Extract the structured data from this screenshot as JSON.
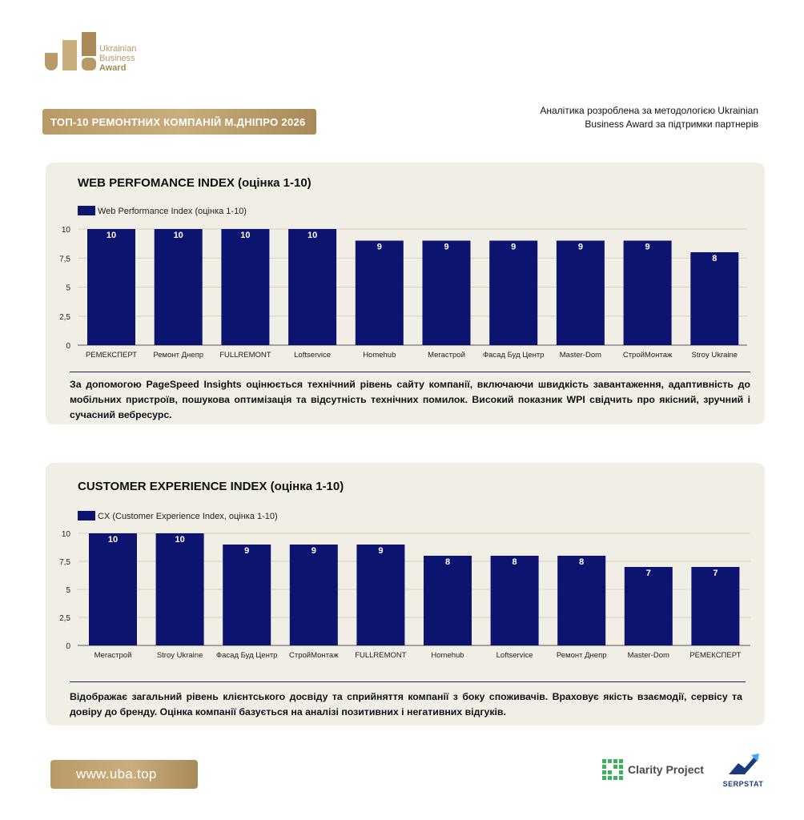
{
  "brand": {
    "logo_lines": [
      "Ukrainian",
      "Business",
      "Award"
    ],
    "colors": {
      "gold": "#b89a66",
      "navy": "#0d1470",
      "panel": "#f1eee6"
    }
  },
  "header": {
    "title_badge": "ТОП-10 РЕМОНТНИХ КОМПАНІЙ М.ДНІПРО 2026",
    "analytics_line1": "Аналітика розроблена за методологією Ukrainian",
    "analytics_line2": "Business Award за підтримки партнерів"
  },
  "sections": [
    {
      "title": "WEB PERFOMANCE INDEX (оцінка 1-10)",
      "description": "За допомогою PageSpeed Insights оцінюється технічний рівень сайту компанії, включаючи швидкість завантаження, адаптивність до мобільних пристроїв, пошукова оптимізація та відсутність технічних помилок. Високий показник WPI свідчить про якісний, зручний і сучасний вебресурс."
    },
    {
      "title": "CUSTOMER EXPERIENCE INDEX (оцінка 1-10)",
      "description": "Відображає загальний рівень клієнтського досвіду та сприйняття компанії з боку споживачів. Враховує якість взаємодії, сервісу та довіру до бренду. Оцінка компанії базується на аналізі позитивних і негативних відгуків."
    }
  ],
  "chart_data": [
    {
      "type": "bar",
      "categories": [
        "РЕМЕКСПЕРТ",
        "Ремонт Днепр",
        "FULLREMONT",
        "Loftservice",
        "Homehub",
        "Мегастрой",
        "Фасад Буд Центр",
        "Master-Dom",
        "СтройМонтаж",
        "Stroy Ukraine"
      ],
      "series": [
        {
          "name": "Web Performance Index (оцінка 1-10)",
          "values": [
            10,
            10,
            10,
            10,
            9,
            9,
            9,
            9,
            9,
            8
          ]
        }
      ],
      "ylim": [
        0,
        10
      ],
      "yticks": [
        "0",
        "2,5",
        "5",
        "7,5",
        "10"
      ],
      "grid": true,
      "legend": "top-left",
      "color": "#0d1470"
    },
    {
      "type": "bar",
      "categories": [
        "Мегастрой",
        "Stroy Ukraine",
        "Фасад Буд Центр",
        "СтройМонтаж",
        "FULLREMONT",
        "Homehub",
        "Loftservice",
        "Ремонт Днепр",
        "Master-Dom",
        "РЕМЕКСПЕРТ"
      ],
      "series": [
        {
          "name": "CX (Customer Experience Index, оцінка 1-10)",
          "values": [
            10,
            10,
            9,
            9,
            9,
            8,
            8,
            8,
            7,
            7
          ]
        }
      ],
      "ylim": [
        0,
        10
      ],
      "yticks": [
        "0",
        "2,5",
        "5",
        "7,5",
        "10"
      ],
      "grid": true,
      "legend": "top-left",
      "color": "#0d1470"
    }
  ],
  "footer": {
    "url": "www.uba.top",
    "partner1": "Clarity Project",
    "partner2": "SERPSTAT"
  }
}
